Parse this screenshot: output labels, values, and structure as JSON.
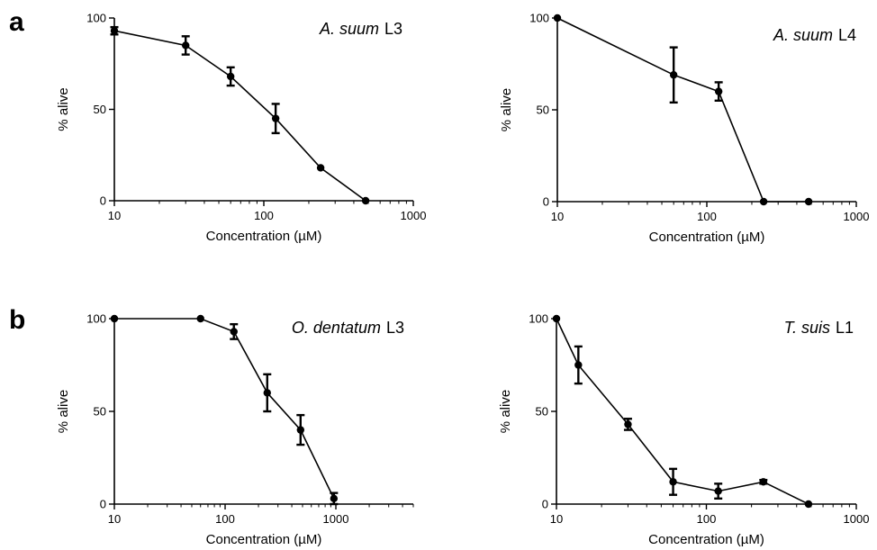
{
  "panel_labels": {
    "a": "a",
    "b": "b"
  },
  "chart_data": [
    {
      "type": "line",
      "panel": "a",
      "title_italic": "A. suum",
      "title_stage": "L3",
      "xlabel": "Concentration (µM)",
      "ylabel": "% alive",
      "xscale": "log",
      "xlim": [
        10,
        1000
      ],
      "ylim": [
        0,
        100
      ],
      "xticks": [
        "10",
        "100",
        "1000"
      ],
      "yticks": [
        "0",
        "50",
        "100"
      ],
      "series": [
        {
          "x": [
            10,
            30,
            60,
            120,
            240,
            480
          ],
          "y": [
            93,
            85,
            68,
            45,
            18,
            0
          ],
          "err": [
            2,
            5,
            5,
            8,
            0,
            0
          ]
        }
      ]
    },
    {
      "type": "line",
      "panel": "a",
      "title_italic": "A. suum",
      "title_stage": "L4",
      "xlabel": "Concentration (µM)",
      "ylabel": "% alive",
      "xscale": "log",
      "xlim": [
        10,
        1000
      ],
      "ylim": [
        0,
        100
      ],
      "xticks": [
        "10",
        "100",
        "1000"
      ],
      "yticks": [
        "0",
        "50",
        "100"
      ],
      "series": [
        {
          "x": [
            10,
            60,
            120,
            240,
            480
          ],
          "y": [
            100,
            69,
            60,
            0,
            0
          ],
          "err": [
            0,
            15,
            5,
            0,
            0
          ]
        }
      ]
    },
    {
      "type": "line",
      "panel": "b",
      "title_italic": "O. dentatum",
      "title_stage": "L3",
      "xlabel": "Concentration (µM)",
      "ylabel": "% alive",
      "xscale": "log",
      "xlim": [
        10,
        5000
      ],
      "ylim": [
        0,
        100
      ],
      "xticks": [
        "10",
        "100",
        "1000"
      ],
      "yticks": [
        "0",
        "50",
        "100"
      ],
      "series": [
        {
          "x": [
            10,
            60,
            120,
            240,
            480,
            960
          ],
          "y": [
            100,
            100,
            93,
            60,
            40,
            3
          ],
          "err": [
            0,
            0,
            4,
            10,
            8,
            3
          ]
        }
      ]
    },
    {
      "type": "line",
      "panel": "b",
      "title_italic": "T. suis",
      "title_stage": "L1",
      "xlabel": "Concentration (µM)",
      "ylabel": "% alive",
      "xscale": "log",
      "xlim": [
        10,
        1000
      ],
      "ylim": [
        0,
        100
      ],
      "xticks": [
        "10",
        "100",
        "1000"
      ],
      "yticks": [
        "0",
        "50",
        "100"
      ],
      "series": [
        {
          "x": [
            10,
            14,
            30,
            60,
            120,
            240,
            480
          ],
          "y": [
            100,
            75,
            43,
            12,
            7,
            12,
            0
          ],
          "err": [
            0,
            10,
            3,
            7,
            4,
            1,
            0
          ]
        }
      ]
    }
  ]
}
